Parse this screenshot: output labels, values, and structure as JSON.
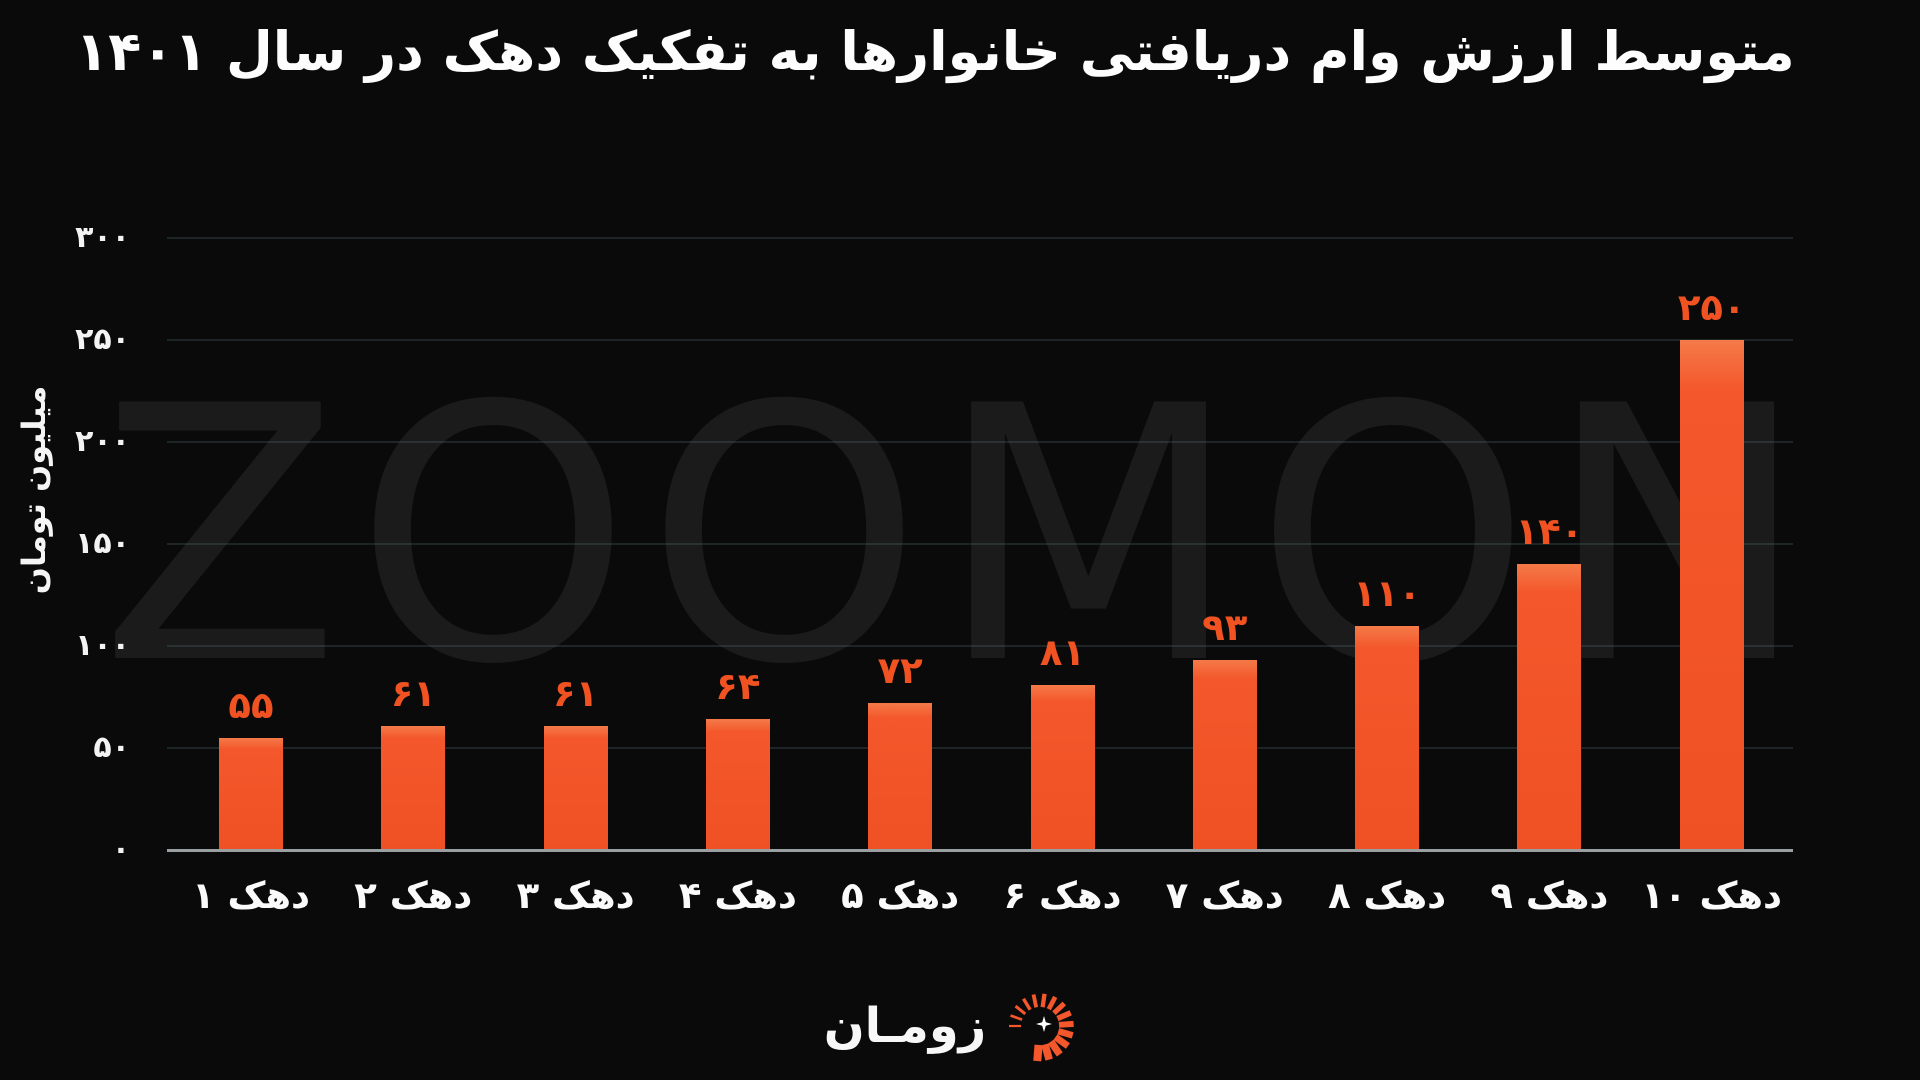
{
  "title": "متوسط ارزش وام دریافتی خانوارها به تفکیک دهک در سال ۱۴۰۱",
  "watermark": {
    "text": "ZOOMON"
  },
  "brand": {
    "label": "زومـان",
    "icon": "zoman-radial-burst-icon"
  },
  "colors": {
    "background": "#0a0a0a",
    "bar": "#f3572b",
    "bar_highlight": "#f57a49",
    "value_label": "#f05222",
    "text": "#fafafa",
    "watermark": "#1b1b1b",
    "axis_line": "#9aa0a2",
    "gridline": "rgba(110,145,155,0.20)"
  },
  "chart_data": {
    "type": "bar",
    "title": "متوسط ارزش وام دریافتی خانوارها به تفکیک دهک در سال ۱۴۰۱",
    "xlabel": "",
    "ylabel": "میلیون تومان",
    "ylim": [
      0,
      300
    ],
    "grid": true,
    "legend": "none",
    "categories": [
      "دهک ۱",
      "دهک ۲",
      "دهک ۳",
      "دهک ۴",
      "دهک ۵",
      "دهک ۶",
      "دهک ۷",
      "دهک ۸",
      "دهک ۹",
      "دهک ۱۰"
    ],
    "values": [
      55,
      61,
      61,
      64,
      72,
      81,
      93,
      110,
      140,
      250
    ],
    "value_labels": [
      "۵۵",
      "۶۱",
      "۶۱",
      "۶۴",
      "۷۲",
      "۸۱",
      "۹۳",
      "۱۱۰",
      "۱۴۰",
      "۲۵۰"
    ],
    "yticks": [
      {
        "value": 0,
        "label": "۰"
      },
      {
        "value": 50,
        "label": "۵۰"
      },
      {
        "value": 100,
        "label": "۱۰۰"
      },
      {
        "value": 150,
        "label": "۱۵۰"
      },
      {
        "value": 200,
        "label": "۲۰۰"
      },
      {
        "value": 250,
        "label": "۲۵۰"
      },
      {
        "value": 300,
        "label": "۳۰۰"
      }
    ]
  }
}
